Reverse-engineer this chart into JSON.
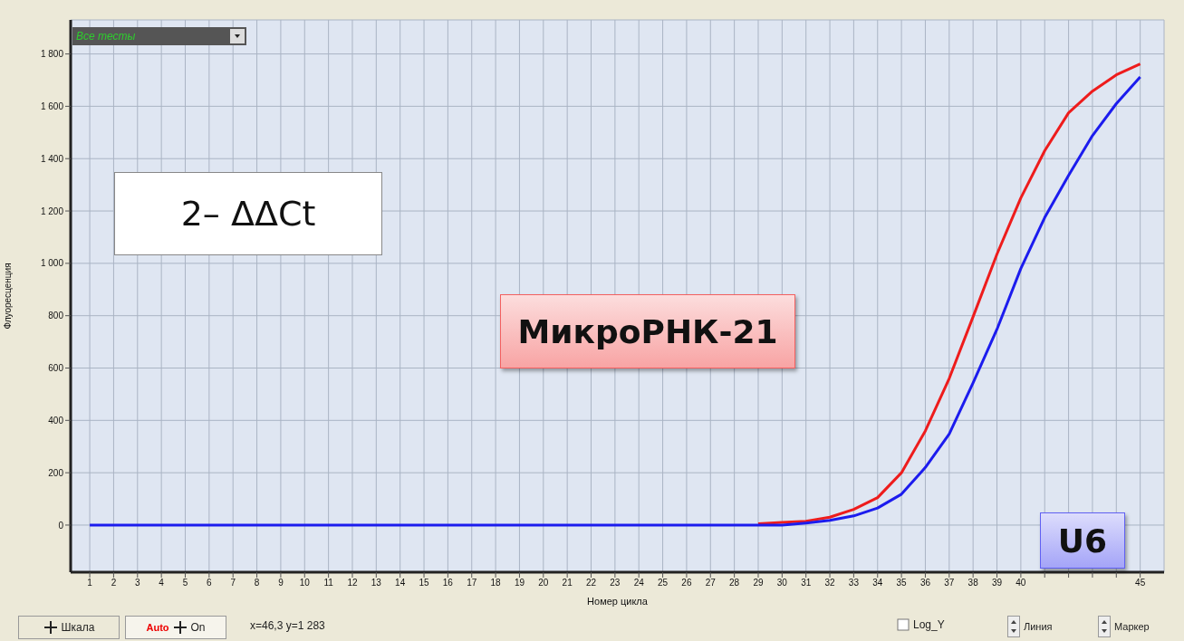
{
  "chart_data": {
    "type": "line",
    "xlabel": "Номер цикла",
    "ylabel": "Флуоресценция",
    "annotations": [
      "2– ΔΔCt",
      "Все тесты",
      "Шкала",
      "Auto",
      "On",
      "x=46,3 y=1 283",
      "Log_Y",
      "Линия",
      "Маркер"
    ],
    "x": [
      1,
      2,
      3,
      4,
      5,
      6,
      7,
      8,
      9,
      10,
      11,
      12,
      13,
      14,
      15,
      16,
      17,
      18,
      19,
      20,
      21,
      22,
      23,
      24,
      25,
      26,
      27,
      28,
      29,
      30,
      31,
      32,
      33,
      34,
      35,
      36,
      37,
      38,
      39,
      40,
      41,
      42,
      43,
      44,
      45
    ],
    "series": [
      {
        "name": "МикроРНК-21",
        "color": "#ee1c1c",
        "values": [
          null,
          null,
          null,
          null,
          null,
          null,
          null,
          null,
          null,
          null,
          null,
          null,
          null,
          null,
          null,
          null,
          null,
          null,
          null,
          null,
          null,
          null,
          null,
          null,
          null,
          null,
          null,
          null,
          5,
          10,
          15,
          30,
          60,
          105,
          200,
          360,
          560,
          796,
          1035,
          1250,
          1430,
          1575,
          1658,
          1720,
          1762
        ]
      },
      {
        "name": "U6",
        "color": "#1c1cee",
        "values": [
          0,
          0,
          0,
          0,
          0,
          0,
          0,
          0,
          0,
          0,
          0,
          0,
          0,
          0,
          0,
          0,
          0,
          0,
          0,
          0,
          0,
          0,
          0,
          0,
          0,
          0,
          0,
          0,
          0,
          0,
          8,
          18,
          35,
          65,
          118,
          220,
          348,
          543,
          748,
          980,
          1175,
          1336,
          1488,
          1610,
          1712
        ]
      }
    ],
    "xlim": [
      0.2,
      46
    ],
    "ylim": [
      -180,
      1930
    ],
    "xticks": [
      1,
      2,
      3,
      4,
      5,
      6,
      7,
      8,
      9,
      10,
      11,
      12,
      13,
      14,
      15,
      16,
      17,
      18,
      19,
      20,
      21,
      22,
      23,
      24,
      25,
      26,
      27,
      28,
      29,
      30,
      31,
      32,
      33,
      34,
      35,
      36,
      37,
      38,
      39,
      40,
      {
        "value": 41,
        "label": null
      },
      {
        "value": 42,
        "label": null
      },
      {
        "value": 43,
        "label": null
      },
      {
        "value": 44,
        "label": null
      },
      45
    ],
    "yticks": [
      0,
      200,
      400,
      600,
      800,
      {
        "value": 1000,
        "label": "1 000"
      },
      {
        "value": 1200,
        "label": "1 200"
      },
      {
        "value": 1400,
        "label": "1 400"
      },
      {
        "value": 1600,
        "label": "1 600"
      },
      {
        "value": 1800,
        "label": "1 800"
      }
    ],
    "grid": true
  }
}
